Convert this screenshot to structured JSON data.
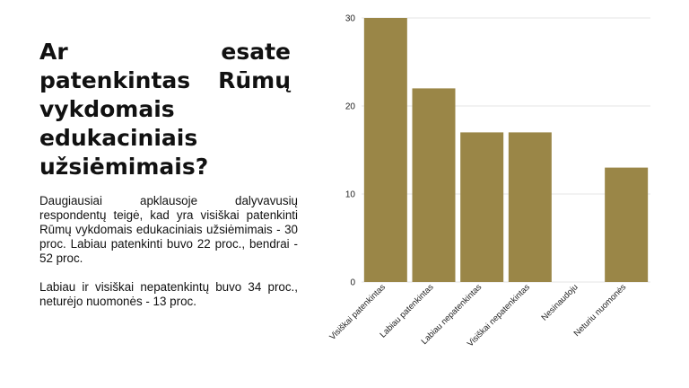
{
  "slide": {
    "title": "Ar esate patenkintas Rūmų vykdomais edukaciniais užsiėmimais?",
    "paragraph1": "Daugiausiai apklausoje dalyvavusių respondentų teigė, kad yra visiškai patenkinti Rūmų vykdomais edukaciniais užsiėmimais - 30 proc. Labiau patenkinti buvo 22 proc., bendrai - 52 proc.",
    "paragraph2": "Labiau ir visiškai nepatenkintų buvo 34 proc., neturėjo nuomonės - 13 proc."
  },
  "chart_data": {
    "type": "bar",
    "categories": [
      "Visiškai patenkintas",
      "Labiau patenkintas",
      "Labiau nepatenkintas",
      "Visiškai nepatenkintas",
      "Nesinaudoju",
      "Neturiu nuomonės"
    ],
    "values": [
      30,
      22,
      17,
      17,
      0,
      13
    ],
    "ylim": [
      0,
      30
    ],
    "yticks": [
      "0",
      "10",
      "20",
      "30"
    ],
    "grid": true,
    "bar_color": "#9a8647",
    "grid_color": "#e6e6e6",
    "xlabel": "",
    "ylabel": ""
  }
}
